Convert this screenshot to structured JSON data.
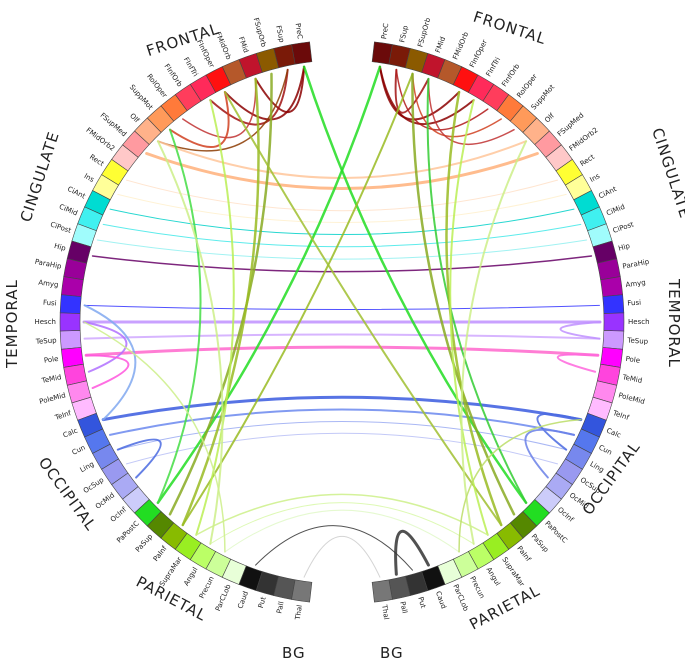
{
  "lobes": {
    "frontal_left": "FRONTAL",
    "frontal_right": "FRONTAL",
    "cingulate_left": "CINGULATE",
    "cingulate_right": "CINGULATE",
    "temporal_left": "TEMPORAL",
    "temporal_right": "TEMPORAL",
    "occipital_left": "OCCIPITAL",
    "occipital_right": "OCCIPITAL",
    "parietal_left": "PARIETAL",
    "parietal_right": "PARIETAL",
    "bg_left": "BG",
    "bg_right": "BG"
  },
  "right_regions": [
    {
      "label": "PreC",
      "color": "#6b0a0a"
    },
    {
      "label": "FSup",
      "color": "#7a1a08"
    },
    {
      "label": "FSupOrb",
      "color": "#8b5a00"
    },
    {
      "label": "FMid",
      "color": "#c0142c"
    },
    {
      "label": "FMidOrb",
      "color": "#b5582a"
    },
    {
      "label": "FInfOper",
      "color": "#ff1010"
    },
    {
      "label": "FInfTri",
      "color": "#ff2a5a"
    },
    {
      "label": "FInfOrb",
      "color": "#ff3d5c"
    },
    {
      "label": "RolOper",
      "color": "#ff7a3a"
    },
    {
      "label": "SuppMot",
      "color": "#ff9a5a"
    },
    {
      "label": "Olf",
      "color": "#ffb28a"
    },
    {
      "label": "FSupMed",
      "color": "#ff9aa0"
    },
    {
      "label": "FMidOrb2",
      "color": "#ffc8c8"
    },
    {
      "label": "Rect",
      "color": "#ffff33"
    },
    {
      "label": "Ins",
      "color": "#ffff99"
    },
    {
      "label": "CiAnt",
      "color": "#00dcd2"
    },
    {
      "label": "CiMid",
      "color": "#40f0f0"
    },
    {
      "label": "CiPost",
      "color": "#a0fcfc"
    },
    {
      "label": "Hip",
      "color": "#660066"
    },
    {
      "label": "ParaHip",
      "color": "#990099"
    },
    {
      "label": "Amyg",
      "color": "#aa00aa"
    },
    {
      "label": "Fusi",
      "color": "#3333ff"
    },
    {
      "label": "Hesch",
      "color": "#9933ff"
    },
    {
      "label": "TeSup",
      "color": "#cc99ff"
    },
    {
      "label": "Pole",
      "color": "#ff00ff"
    },
    {
      "label": "TeMid",
      "color": "#ff44dd"
    },
    {
      "label": "PoleMid",
      "color": "#ff88ee"
    },
    {
      "label": "TeInf",
      "color": "#ffbbff"
    },
    {
      "label": "Calc",
      "color": "#3355dd"
    },
    {
      "label": "Cun",
      "color": "#5577ee"
    },
    {
      "label": "Ling",
      "color": "#7788ee"
    },
    {
      "label": "OcSup",
      "color": "#9999f0"
    },
    {
      "label": "OcMid",
      "color": "#aaaaf4"
    },
    {
      "label": "OcInf",
      "color": "#ccccfa"
    },
    {
      "label": "PaPostC",
      "color": "#22dd22"
    },
    {
      "label": "PaSup",
      "color": "#558800"
    },
    {
      "label": "PaInf",
      "color": "#88bb00"
    },
    {
      "label": "SupraMar",
      "color": "#99ee22"
    },
    {
      "label": "Angul",
      "color": "#bbff66"
    },
    {
      "label": "Precun",
      "color": "#ccff99"
    },
    {
      "label": "ParCLob",
      "color": "#e8ffd8"
    },
    {
      "label": "Caud",
      "color": "#111111"
    },
    {
      "label": "Put",
      "color": "#333333"
    },
    {
      "label": "Pall",
      "color": "#555555"
    },
    {
      "label": "Thal",
      "color": "#777777"
    }
  ],
  "left_regions": [
    {
      "label": "PreC",
      "color": "#6b0a0a"
    },
    {
      "label": "FSup",
      "color": "#7a1a08"
    },
    {
      "label": "FSupOrb",
      "color": "#8b5a00"
    },
    {
      "label": "FMid",
      "color": "#c0142c"
    },
    {
      "label": "FMidOrb",
      "color": "#b5582a"
    },
    {
      "label": "FInfOper",
      "color": "#ff1010"
    },
    {
      "label": "FInfTri",
      "color": "#ff2a5a"
    },
    {
      "label": "FInfOrb",
      "color": "#ff3d5c"
    },
    {
      "label": "RolOper",
      "color": "#ff7a3a"
    },
    {
      "label": "SuppMot",
      "color": "#ff9a5a"
    },
    {
      "label": "Olf",
      "color": "#ffb28a"
    },
    {
      "label": "FSupMed",
      "color": "#ff9aa0"
    },
    {
      "label": "FMidOrb2",
      "color": "#ffc8c8"
    },
    {
      "label": "Rect",
      "color": "#ffff33"
    },
    {
      "label": "Ins",
      "color": "#ffff99"
    },
    {
      "label": "CiAnt",
      "color": "#00dcd2"
    },
    {
      "label": "CiMid",
      "color": "#40f0f0"
    },
    {
      "label": "CiPost",
      "color": "#a0fcfc"
    },
    {
      "label": "Hip",
      "color": "#660066"
    },
    {
      "label": "ParaHip",
      "color": "#990099"
    },
    {
      "label": "Amyg",
      "color": "#aa00aa"
    },
    {
      "label": "Fusi",
      "color": "#3333ff"
    },
    {
      "label": "Hesch",
      "color": "#9933ff"
    },
    {
      "label": "TeSup",
      "color": "#cc99ff"
    },
    {
      "label": "Pole",
      "color": "#ff00ff"
    },
    {
      "label": "TeMid",
      "color": "#ff44dd"
    },
    {
      "label": "PoleMid",
      "color": "#ff88ee"
    },
    {
      "label": "TeInf",
      "color": "#ffbbff"
    },
    {
      "label": "Calc",
      "color": "#3355dd"
    },
    {
      "label": "Cun",
      "color": "#5577ee"
    },
    {
      "label": "Ling",
      "color": "#7788ee"
    },
    {
      "label": "OcSup",
      "color": "#9999f0"
    },
    {
      "label": "OcMid",
      "color": "#aaaaf4"
    },
    {
      "label": "OcInf",
      "color": "#ccccfa"
    },
    {
      "label": "PaPostC",
      "color": "#22dd22"
    },
    {
      "label": "PaSup",
      "color": "#558800"
    },
    {
      "label": "PaInf",
      "color": "#88bb00"
    },
    {
      "label": "SupraMar",
      "color": "#99ee22"
    },
    {
      "label": "Angul",
      "color": "#bbff66"
    },
    {
      "label": "Precun",
      "color": "#ccff99"
    },
    {
      "label": "ParCLob",
      "color": "#e8ffd8"
    },
    {
      "label": "Caud",
      "color": "#111111"
    },
    {
      "label": "Put",
      "color": "#333333"
    },
    {
      "label": "Pall",
      "color": "#555555"
    },
    {
      "label": "Thal",
      "color": "#777777"
    }
  ],
  "connections": [
    {
      "a": "L:PreC",
      "b": "L:FMid",
      "color": "#8b0000",
      "weight": 2
    },
    {
      "a": "L:PreC",
      "b": "L:FInfOper",
      "color": "#8b0000",
      "weight": 2
    },
    {
      "a": "L:FSup",
      "b": "L:FInfTri",
      "color": "#a01010",
      "weight": 2
    },
    {
      "a": "L:FMid",
      "b": "L:RolOper",
      "color": "#c03030",
      "weight": 1.5
    },
    {
      "a": "L:FInfOper",
      "b": "L:SuppMot",
      "color": "#d04020",
      "weight": 2
    },
    {
      "a": "L:FSup",
      "b": "L:Olf",
      "color": "#8b3a00",
      "weight": 1.5
    },
    {
      "a": "R:PreC",
      "b": "R:FInfOper",
      "color": "#8b0000",
      "weight": 2
    },
    {
      "a": "R:PreC",
      "b": "R:FInfTri",
      "color": "#8b0000",
      "weight": 2
    },
    {
      "a": "R:FSup",
      "b": "R:FMid",
      "color": "#a01010",
      "weight": 2
    },
    {
      "a": "R:FSup",
      "b": "R:FInfOrb",
      "color": "#b01818",
      "weight": 1.5
    },
    {
      "a": "R:FSupOrb",
      "b": "R:RolOper",
      "color": "#d04020",
      "weight": 1.5
    },
    {
      "a": "R:FMid",
      "b": "R:SuppMot",
      "color": "#c03030",
      "weight": 1.5
    },
    {
      "a": "L:FSupMed",
      "b": "R:FSupMed",
      "color": "#ffb07a",
      "weight": 3
    },
    {
      "a": "L:Olf",
      "b": "R:Olf",
      "color": "#ffc59a",
      "weight": 2
    },
    {
      "a": "L:Rect",
      "b": "R:Rect",
      "color": "#ffe0c8",
      "weight": 1
    },
    {
      "a": "L:Ins",
      "b": "R:Ins",
      "color": "#fff0cc",
      "weight": 1
    },
    {
      "a": "L:CiAnt",
      "b": "R:CiAnt",
      "color": "#00d0c8",
      "weight": 1
    },
    {
      "a": "L:CiMid",
      "b": "R:CiMid",
      "color": "#40e8e8",
      "weight": 1
    },
    {
      "a": "L:CiPost",
      "b": "R:CiPost",
      "color": "#90f0f0",
      "weight": 1
    },
    {
      "a": "L:Hip",
      "b": "R:Hip",
      "color": "#660066",
      "weight": 1.5
    },
    {
      "a": "L:Fusi",
      "b": "R:Fusi",
      "color": "#3333ff",
      "weight": 1
    },
    {
      "a": "L:Hesch",
      "b": "R:Hesch",
      "color": "#c090ff",
      "weight": 3
    },
    {
      "a": "L:TeSup",
      "b": "R:TeSup",
      "color": "#d0a8ff",
      "weight": 2
    },
    {
      "a": "L:Pole",
      "b": "R:Pole",
      "color": "#ff66cc",
      "weight": 3
    },
    {
      "a": "L:Hesch",
      "b": "L:TeMid",
      "color": "#b070ff",
      "weight": 2
    },
    {
      "a": "L:Pole",
      "b": "L:PoleMid",
      "color": "#ff55dd",
      "weight": 2
    },
    {
      "a": "R:Hesch",
      "b": "R:TeSup",
      "color": "#c090ff",
      "weight": 2
    },
    {
      "a": "R:Pole",
      "b": "R:TeMid",
      "color": "#ff66dd",
      "weight": 2
    },
    {
      "a": "L:Calc",
      "b": "R:Calc",
      "color": "#3a5adf",
      "weight": 3
    },
    {
      "a": "L:Cun",
      "b": "R:Cun",
      "color": "#6b88ee",
      "weight": 2
    },
    {
      "a": "L:Ling",
      "b": "R:Ling",
      "color": "#9aaaf2",
      "weight": 1
    },
    {
      "a": "L:OcSup",
      "b": "R:OcSup",
      "color": "#b8c0f6",
      "weight": 1
    },
    {
      "a": "L:Calc",
      "b": "L:Fusi",
      "color": "#80a8f0",
      "weight": 2
    },
    {
      "a": "L:Ling",
      "b": "L:OcMid",
      "color": "#4a6ae0",
      "weight": 2
    },
    {
      "a": "R:Calc",
      "b": "R:Ling",
      "color": "#4a6ae0",
      "weight": 2
    },
    {
      "a": "R:Cun",
      "b": "R:OcMid",
      "color": "#6a80e8",
      "weight": 2
    },
    {
      "a": "L:PaPostC",
      "b": "R:PreC",
      "color": "#22dd22",
      "weight": 2.5
    },
    {
      "a": "R:PaPostC",
      "b": "L:PreC",
      "color": "#22dd22",
      "weight": 2.5
    },
    {
      "a": "L:PaPostC",
      "b": "L:SuppMot",
      "color": "#44dd44",
      "weight": 2
    },
    {
      "a": "R:PaPostC",
      "b": "R:FMid",
      "color": "#33cc33",
      "weight": 2
    },
    {
      "a": "L:PaSup",
      "b": "L:FSupOrb",
      "color": "#88aa22",
      "weight": 2.5
    },
    {
      "a": "L:PaInf",
      "b": "L:FMid",
      "color": "#99bb22",
      "weight": 2.5
    },
    {
      "a": "L:PaInf",
      "b": "R:FSupOrb",
      "color": "#99bb22",
      "weight": 2
    },
    {
      "a": "R:PaSup",
      "b": "R:FSupOrb",
      "color": "#88aa22",
      "weight": 2.5
    },
    {
      "a": "R:PaInf",
      "b": "R:FInfOper",
      "color": "#99bb22",
      "weight": 2.5
    },
    {
      "a": "R:PaInf",
      "b": "L:FInfOper",
      "color": "#a0c030",
      "weight": 2
    },
    {
      "a": "L:SupraMar",
      "b": "L:FInfTri",
      "color": "#bbee55",
      "weight": 2
    },
    {
      "a": "R:SupraMar",
      "b": "R:FInfTri",
      "color": "#bbee55",
      "weight": 2
    },
    {
      "a": "L:SupraMar",
      "b": "R:SupraMar",
      "color": "#ccf088",
      "weight": 1.5
    },
    {
      "a": "L:Angul",
      "b": "R:Angul",
      "color": "#d8f8a8",
      "weight": 1
    },
    {
      "a": "L:Precun",
      "b": "R:Precun",
      "color": "#e0f8c8",
      "weight": 1
    },
    {
      "a": "L:Angul",
      "b": "L:Olf",
      "color": "#ccee88",
      "weight": 2
    },
    {
      "a": "R:Angul",
      "b": "R:Olf",
      "color": "#ccee88",
      "weight": 2
    },
    {
      "a": "L:Precun",
      "b": "L:Hesch",
      "color": "#ccee88",
      "weight": 1.5
    },
    {
      "a": "R:Precun",
      "b": "R:Calc",
      "color": "#bbdd66",
      "weight": 1.5
    },
    {
      "a": "L:Caud",
      "b": "R:Put",
      "color": "#333333",
      "weight": 1
    },
    {
      "a": "R:Caud",
      "b": "R:Pall",
      "color": "#333333",
      "weight": 3
    },
    {
      "a": "L:Thal",
      "b": "R:Thal",
      "color": "#cccccc",
      "weight": 1
    }
  ]
}
